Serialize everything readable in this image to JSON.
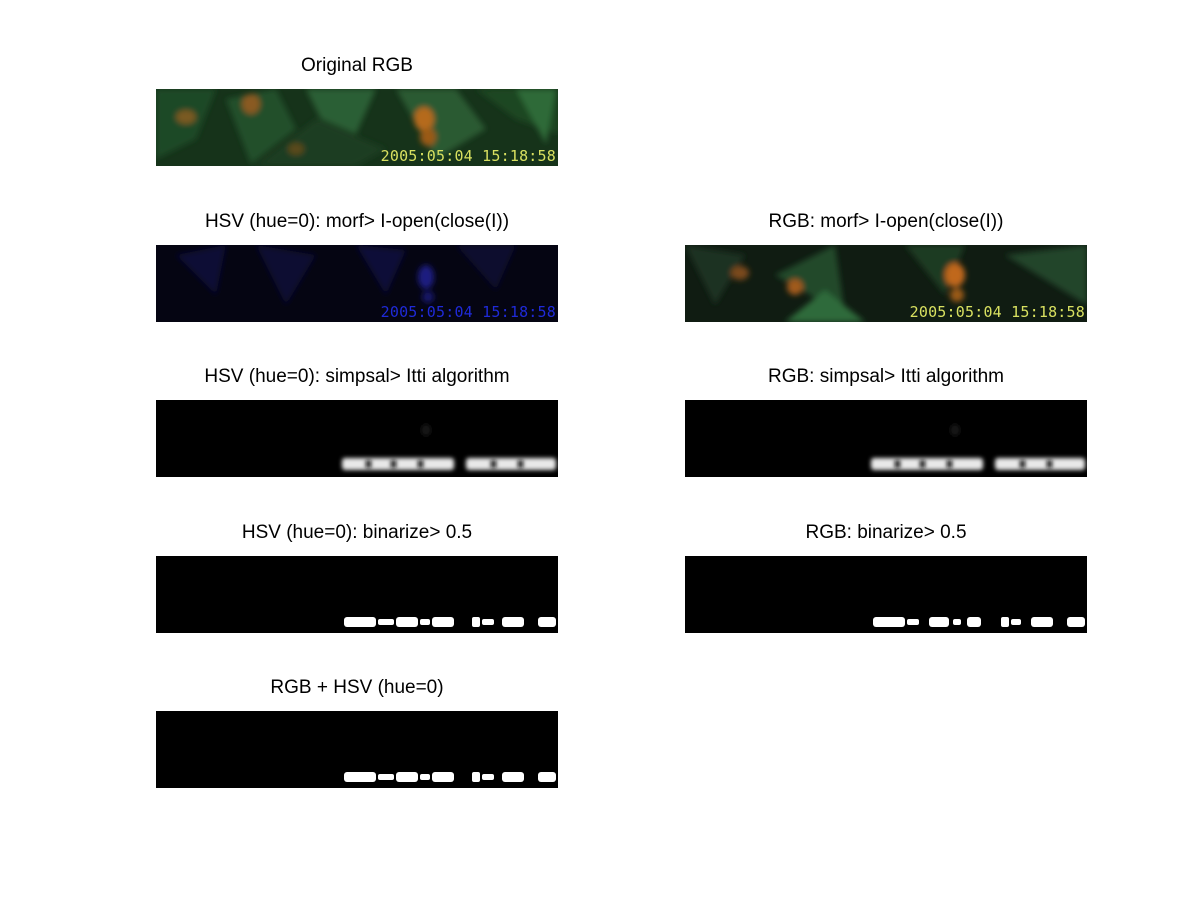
{
  "figure": {
    "panels": [
      {
        "id": "original-rgb",
        "title": "Original RGB",
        "image_kind": "color-photo",
        "stamp_text": "2005:05:04 15:18:58",
        "stamp_color": "#d8e060"
      },
      {
        "id": "hsv-morf",
        "title": "HSV (hue=0): morf> I-open(close(I))",
        "image_kind": "blue-photo",
        "stamp_text": "2005:05:04 15:18:58",
        "stamp_color": "#1f2ad8"
      },
      {
        "id": "rgb-morf",
        "title": "RGB: morf> I-open(close(I))",
        "image_kind": "color-photo",
        "stamp_text": "2005:05:04 15:18:58",
        "stamp_color": "#d8e060"
      },
      {
        "id": "hsv-simpsal",
        "title": "HSV (hue=0): simpsal> Itti algorithm",
        "image_kind": "blurred-saliency"
      },
      {
        "id": "rgb-simpsal",
        "title": "RGB: simpsal> Itti algorithm",
        "image_kind": "blurred-saliency"
      },
      {
        "id": "hsv-binarize",
        "title": "HSV (hue=0): binarize> 0.5",
        "image_kind": "binary-mask"
      },
      {
        "id": "rgb-binarize",
        "title": "RGB: binarize> 0.5",
        "image_kind": "binary-mask"
      },
      {
        "id": "rgb-plus-hsv",
        "title": "RGB + HSV (hue=0)",
        "image_kind": "binary-mask"
      }
    ]
  }
}
